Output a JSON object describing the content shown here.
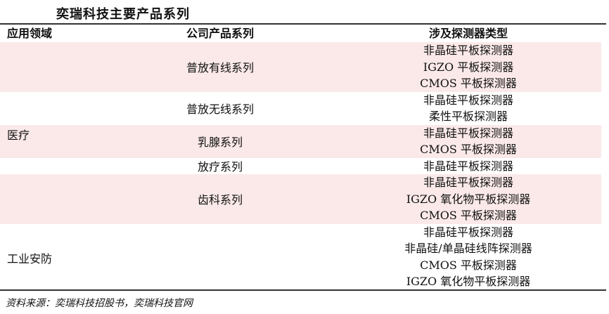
{
  "title": "奕瑞科技主要产品系列",
  "headers": {
    "area": "应用领域",
    "product": "公司产品系列",
    "detector": "涉及探测器类型"
  },
  "areas": [
    {
      "name": "医疗",
      "series": [
        {
          "name": "普放有线系列",
          "detectors": [
            "非晶硅平板探测器",
            "IGZO 平板探测器",
            "CMOS 平板探测器"
          ]
        },
        {
          "name": "普放无线系列",
          "detectors": [
            "非晶硅平板探测器",
            "柔性平板探测器"
          ]
        },
        {
          "name": "乳腺系列",
          "detectors": [
            "非晶硅平板探测器",
            "CMOS 平板探测器"
          ]
        },
        {
          "name": "放疗系列",
          "detectors": [
            "非晶硅平板探测器"
          ]
        },
        {
          "name": "齿科系列",
          "detectors": [
            "非晶硅平板探测器",
            "IGZO 氧化物平板探测器",
            "CMOS 平板探测器"
          ]
        }
      ]
    },
    {
      "name": "工业安防",
      "series": [
        {
          "name": "",
          "detectors": [
            "非晶硅平板探测器",
            "非晶硅/单晶硅线阵探测器",
            "CMOS 平板探测器",
            "IGZO 氧化物平板探测器"
          ]
        }
      ]
    }
  ],
  "source": "资料来源：奕瑞科技招股书，奕瑞科技官网",
  "colors": {
    "row_highlight": "#fbe9e9",
    "rule": "#333333"
  }
}
